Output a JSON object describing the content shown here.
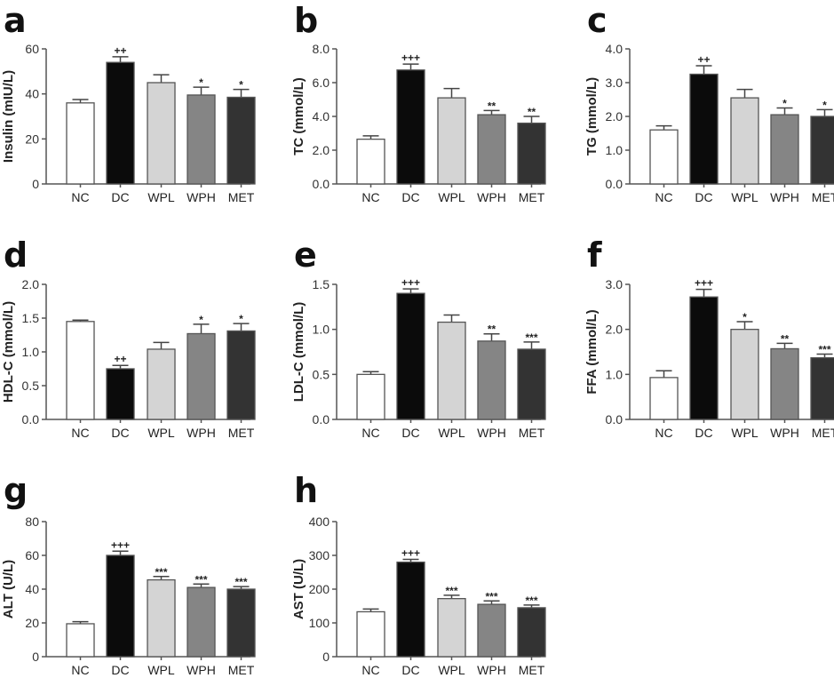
{
  "chart_data": [
    {
      "panel": "a",
      "type": "bar",
      "title": "",
      "xlabel": "",
      "ylabel": "Insulin (mIU/L)",
      "ylim": [
        0,
        60
      ],
      "yticks": [
        0,
        20,
        40,
        60
      ],
      "ytick_labels": [
        "0",
        "20",
        "40",
        "60"
      ],
      "categories": [
        "NC",
        "DC",
        "WPL",
        "WPH",
        "MET"
      ],
      "values": [
        36,
        54,
        45,
        39.5,
        38.5
      ],
      "errors": [
        1.5,
        2.5,
        3.5,
        3.5,
        3.5
      ],
      "annotations": [
        "",
        "++",
        "",
        "*",
        "*"
      ]
    },
    {
      "panel": "b",
      "type": "bar",
      "title": "",
      "xlabel": "",
      "ylabel": "TC (mmol/L)",
      "ylim": [
        0,
        8
      ],
      "yticks": [
        0,
        2,
        4,
        6,
        8
      ],
      "ytick_labels": [
        "0.0",
        "2.0",
        "4.0",
        "6.0",
        "8.0"
      ],
      "categories": [
        "NC",
        "DC",
        "WPL",
        "WPH",
        "MET"
      ],
      "values": [
        2.65,
        6.75,
        5.1,
        4.1,
        3.6
      ],
      "errors": [
        0.2,
        0.35,
        0.55,
        0.25,
        0.4
      ],
      "annotations": [
        "",
        "+++",
        "",
        "**",
        "**"
      ]
    },
    {
      "panel": "c",
      "type": "bar",
      "title": "",
      "xlabel": "",
      "ylabel": "TG (mmol/L)",
      "ylim": [
        0,
        4
      ],
      "yticks": [
        0,
        1,
        2,
        3,
        4
      ],
      "ytick_labels": [
        "0.0",
        "1.0",
        "2.0",
        "3.0",
        "4.0"
      ],
      "categories": [
        "NC",
        "DC",
        "WPL",
        "WPH",
        "MET"
      ],
      "values": [
        1.6,
        3.25,
        2.55,
        2.05,
        2.0
      ],
      "errors": [
        0.12,
        0.25,
        0.25,
        0.2,
        0.2
      ],
      "annotations": [
        "",
        "++",
        "",
        "*",
        "*"
      ]
    },
    {
      "panel": "d",
      "type": "bar",
      "title": "",
      "xlabel": "",
      "ylabel": "HDL-C (mmol/L)",
      "ylim": [
        0,
        2
      ],
      "yticks": [
        0,
        0.5,
        1.0,
        1.5,
        2.0
      ],
      "ytick_labels": [
        "0.0",
        "0.5",
        "1.0",
        "1.5",
        "2.0"
      ],
      "categories": [
        "NC",
        "DC",
        "WPL",
        "WPH",
        "MET"
      ],
      "values": [
        1.45,
        0.75,
        1.04,
        1.27,
        1.31
      ],
      "errors": [
        0.02,
        0.05,
        0.1,
        0.14,
        0.11
      ],
      "annotations": [
        "",
        "++",
        "",
        "*",
        "*"
      ]
    },
    {
      "panel": "e",
      "type": "bar",
      "title": "",
      "xlabel": "",
      "ylabel": "LDL-C (mmol/L)",
      "ylim": [
        0,
        1.5
      ],
      "yticks": [
        0,
        0.5,
        1.0,
        1.5
      ],
      "ytick_labels": [
        "0.0",
        "0.5",
        "1.0",
        "1.5"
      ],
      "categories": [
        "NC",
        "DC",
        "WPL",
        "WPH",
        "MET"
      ],
      "values": [
        0.5,
        1.4,
        1.08,
        0.87,
        0.78
      ],
      "errors": [
        0.03,
        0.05,
        0.08,
        0.08,
        0.08
      ],
      "annotations": [
        "",
        "+++",
        "",
        "**",
        "***"
      ]
    },
    {
      "panel": "f",
      "type": "bar",
      "title": "",
      "xlabel": "",
      "ylabel": "FFA (mmol/L)",
      "ylim": [
        0,
        3
      ],
      "yticks": [
        0,
        1,
        2,
        3
      ],
      "ytick_labels": [
        "0.0",
        "1.0",
        "2.0",
        "3.0"
      ],
      "categories": [
        "NC",
        "DC",
        "WPL",
        "WPH",
        "MET"
      ],
      "values": [
        0.93,
        2.72,
        2.0,
        1.57,
        1.37
      ],
      "errors": [
        0.15,
        0.17,
        0.17,
        0.12,
        0.08
      ],
      "annotations": [
        "",
        "+++",
        "*",
        "**",
        "***"
      ]
    },
    {
      "panel": "g",
      "type": "bar",
      "title": "",
      "xlabel": "",
      "ylabel": "ALT (U/L)",
      "ylim": [
        0,
        80
      ],
      "yticks": [
        0,
        20,
        40,
        60,
        80
      ],
      "ytick_labels": [
        "0",
        "20",
        "40",
        "60",
        "80"
      ],
      "categories": [
        "NC",
        "DC",
        "WPL",
        "WPH",
        "MET"
      ],
      "values": [
        19.5,
        60,
        45.5,
        41,
        40
      ],
      "errors": [
        1.2,
        2.5,
        2,
        2,
        1.5
      ],
      "annotations": [
        "",
        "+++",
        "***",
        "***",
        "***"
      ]
    },
    {
      "panel": "h",
      "type": "bar",
      "title": "",
      "xlabel": "",
      "ylabel": "AST (U/L)",
      "ylim": [
        0,
        400
      ],
      "yticks": [
        0,
        100,
        200,
        300,
        400
      ],
      "ytick_labels": [
        "0",
        "100",
        "200",
        "300",
        "400"
      ],
      "categories": [
        "NC",
        "DC",
        "WPL",
        "WPH",
        "MET"
      ],
      "values": [
        133,
        280,
        172,
        155,
        145
      ],
      "errors": [
        8,
        8,
        10,
        10,
        8
      ],
      "annotations": [
        "",
        "+++",
        "***",
        "***",
        "***"
      ]
    }
  ],
  "bar_colors": {
    "NC": "#ffffff",
    "DC": "#0b0b0b",
    "WPL": "#d4d4d4",
    "WPH": "#858585",
    "MET": "#333333"
  }
}
